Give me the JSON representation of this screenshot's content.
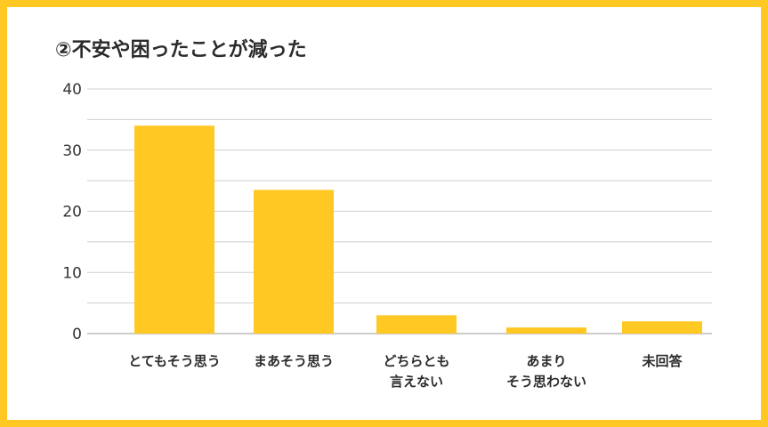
{
  "chart_data": {
    "type": "bar",
    "title": "②不安や困ったことが減った",
    "categories": [
      [
        "とてもそう思う"
      ],
      [
        "まあそう思う"
      ],
      [
        "どちらとも",
        "言えない"
      ],
      [
        "あまり",
        "そう思わない"
      ],
      [
        "未回答"
      ]
    ],
    "values": [
      34,
      23.5,
      3,
      1,
      2
    ],
    "yticks": [
      "0",
      "10",
      "20",
      "30",
      "40"
    ],
    "ylim": [
      0,
      40
    ],
    "grid": true,
    "bar_color": "#FFC822",
    "frame_color": "#FFC822"
  }
}
